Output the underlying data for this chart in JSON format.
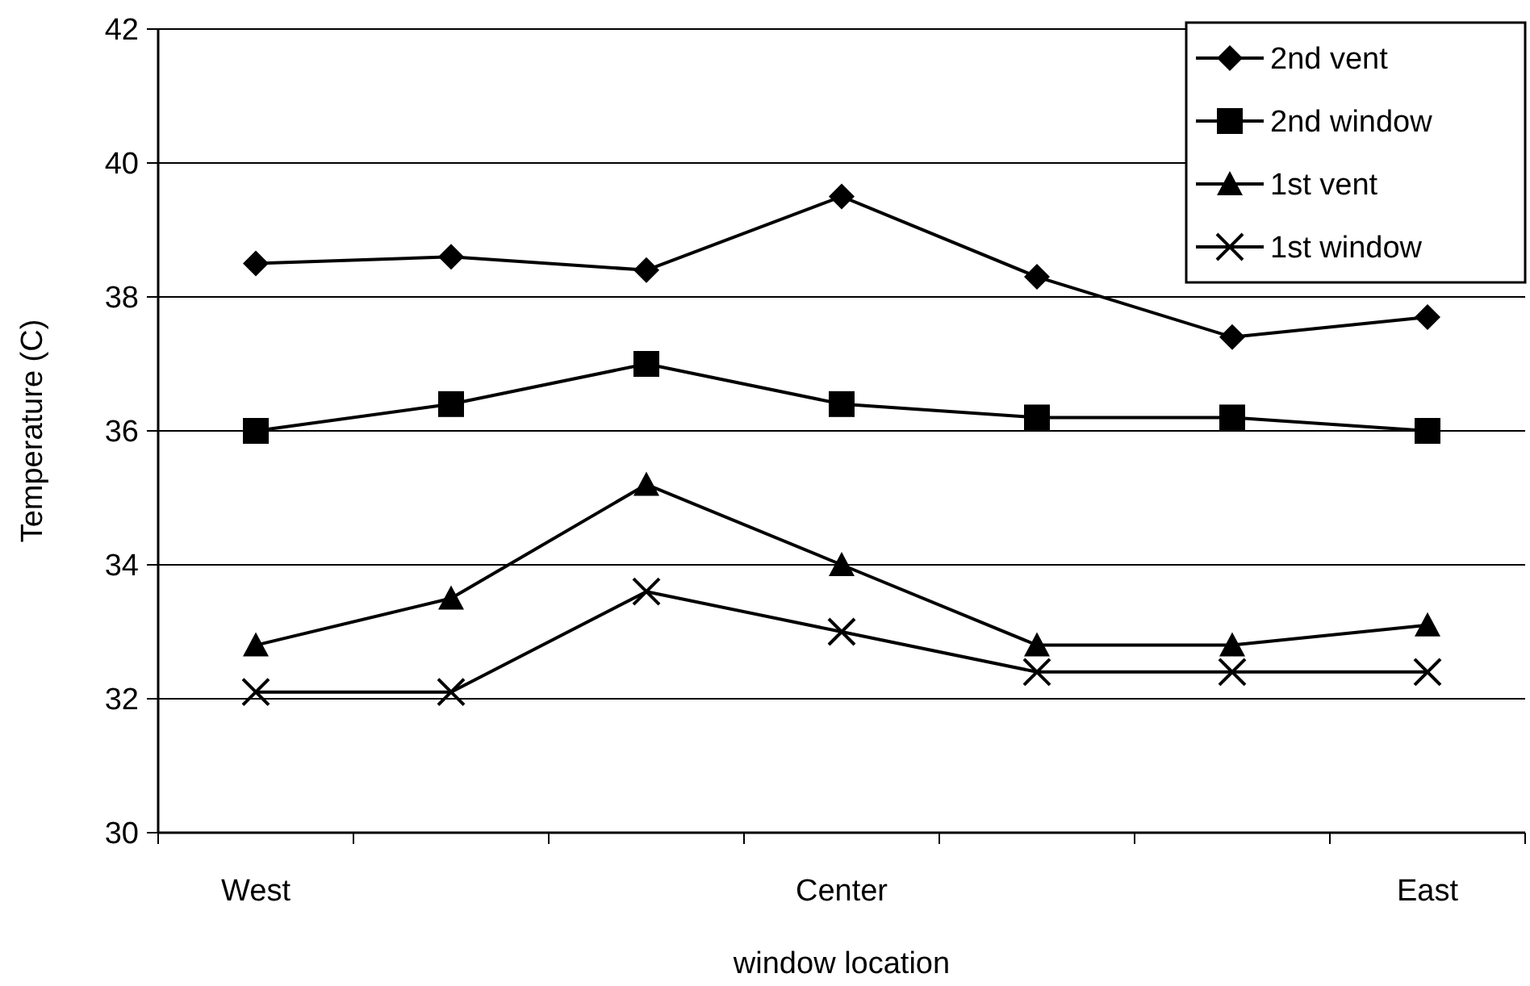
{
  "chart_data": {
    "type": "line",
    "xlabel": "window location",
    "ylabel": "Temperature (C)",
    "categories": [
      "West",
      null,
      null,
      "Center",
      null,
      null,
      "East"
    ],
    "series": [
      {
        "name": "2nd vent",
        "color": "#000000",
        "marker": "diamond",
        "values": [
          38.5,
          38.6,
          38.4,
          39.5,
          38.3,
          37.4,
          37.7
        ]
      },
      {
        "name": "2nd window",
        "color": "#000000",
        "marker": "square",
        "values": [
          36.0,
          36.4,
          37.0,
          36.4,
          36.2,
          36.2,
          36.0
        ]
      },
      {
        "name": "1st vent",
        "color": "#000000",
        "marker": "triangle",
        "values": [
          32.8,
          33.5,
          35.2,
          34.0,
          32.8,
          32.8,
          33.1
        ]
      },
      {
        "name": "1st window",
        "color": "#000000",
        "marker": "cross",
        "values": [
          32.1,
          32.1,
          33.6,
          33.0,
          32.4,
          32.4,
          32.4
        ]
      }
    ],
    "ylim": [
      30,
      42
    ],
    "yticks": [
      30,
      32,
      34,
      36,
      38,
      40,
      42
    ],
    "grid": "y",
    "legend": "top right",
    "line_style": "solid"
  }
}
